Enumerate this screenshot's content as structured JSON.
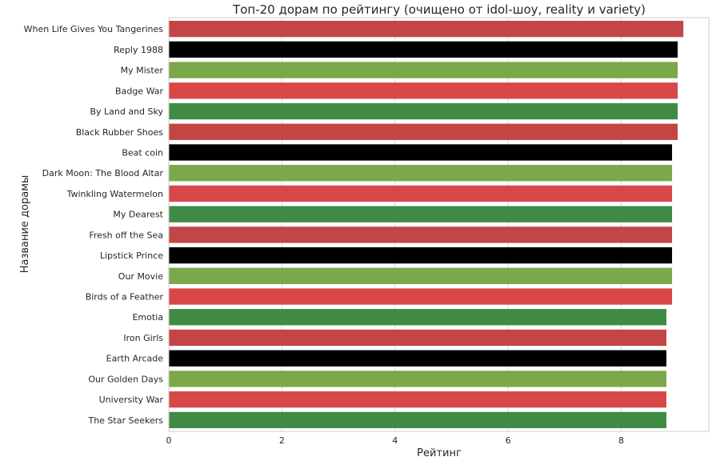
{
  "chart_data": {
    "type": "bar",
    "orientation": "horizontal",
    "title": "Топ-20 дорам по рейтингу (очищено от idol-шоу, reality и variety)",
    "xlabel": "Рейтинг",
    "ylabel": "Название дорамы",
    "xlim": [
      0,
      9.55
    ],
    "xticks": [
      0,
      2,
      4,
      6,
      8
    ],
    "grid": true,
    "categories": [
      "When Life Gives You Tangerines",
      "Reply 1988",
      "My Mister",
      "Badge War",
      "By Land and Sky",
      "Black Rubber Shoes",
      "Beat coin",
      "Dark Moon: The Blood Altar",
      "Twinkling Watermelon",
      "My Dearest",
      "Fresh off the Sea",
      "Lipstick Prince",
      "Our Movie",
      "Birds of a Feather",
      "Emotia",
      "Iron Girls",
      "Earth Arcade",
      "Our Golden Days",
      "University War",
      "The Star Seekers"
    ],
    "values": [
      9.1,
      9.0,
      9.0,
      9.0,
      9.0,
      9.0,
      8.9,
      8.9,
      8.9,
      8.9,
      8.9,
      8.9,
      8.9,
      8.9,
      8.8,
      8.8,
      8.8,
      8.8,
      8.8,
      8.8
    ],
    "bar_colors": [
      "#c44545",
      "#000000",
      "#7aa84a",
      "#d84848",
      "#3f8a45",
      "#c44545",
      "#000000",
      "#7aa84a",
      "#d84848",
      "#3f8a45",
      "#c44545",
      "#000000",
      "#7aa84a",
      "#d84848",
      "#3f8a45",
      "#c44545",
      "#000000",
      "#7aa84a",
      "#d84848",
      "#3f8a45"
    ]
  }
}
